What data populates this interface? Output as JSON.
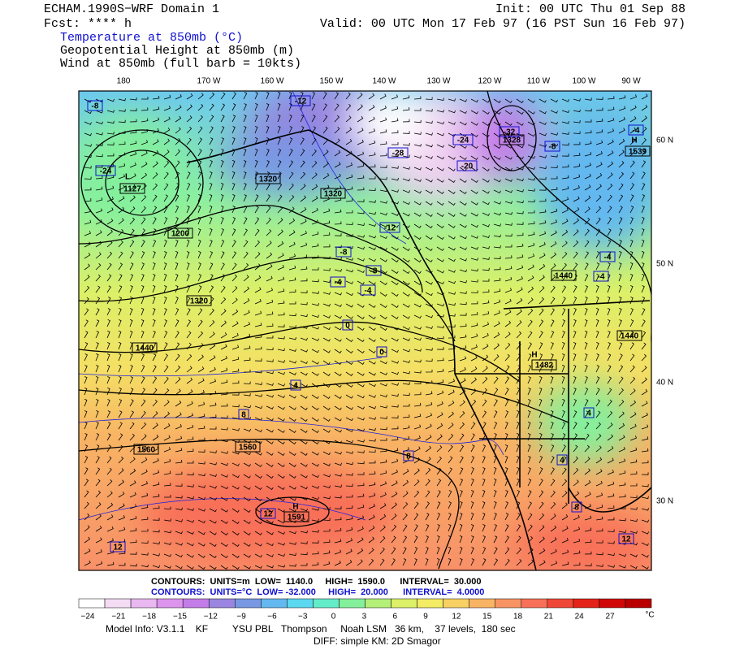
{
  "header": {
    "model": "ECHAM.1990S−WRF Domain 1",
    "forecast": "Fcst: **** h",
    "init": "Init: 00 UTC Thu 01 Sep 88",
    "valid": "Valid: 00 UTC Mon 17 Feb 97 (16 PST Sun 16 Feb 97)"
  },
  "fields": [
    "Temperature at 850mb (°C)",
    "Geopotential Height at 850mb (m)",
    "Wind at 850mb (full barb = 10kts)"
  ],
  "map": {
    "lon_labels": [
      "180",
      "170 W",
      "160 W",
      "150 W",
      "140 W",
      "130 W",
      "120 W",
      "110 W",
      "100 W",
      "90 W"
    ],
    "lat_labels": [
      "60 N",
      "50 N",
      "40 N",
      "30 N"
    ],
    "centers": [
      "L",
      "H",
      "H",
      "H"
    ],
    "height_labels": [
      "1127",
      "1200",
      "1320",
      "1320",
      "1320",
      "1440",
      "1560",
      "1560",
      "1591",
      "1328",
      "1440",
      "1482",
      "1440",
      "1539"
    ],
    "temp_labels": [
      "-8",
      "-12",
      "-24",
      "-28",
      "-24",
      "-20",
      "-32",
      "-4",
      "-8",
      "-12",
      "-8",
      "-8",
      "-4",
      "-4",
      "0",
      "0",
      "4",
      "8",
      "8",
      "4",
      "4",
      "8",
      "12",
      "12",
      "12",
      "-4",
      "-4"
    ]
  },
  "footer": {
    "contours_height": "CONTOURS:  UNITS=m  LOW=  1140.0     HIGH=  1590.0      INTERVAL=  30.000",
    "contours_temp": "CONTOURS:  UNITS=°C  LOW= -32.000     HIGH=  20.000      INTERVAL=  4.0000",
    "colorbar_labels": [
      "−24",
      "−21",
      "−18",
      "−15",
      "−12",
      "−9",
      "−6",
      "−3",
      "0",
      "3",
      "6",
      "9",
      "12",
      "15",
      "18",
      "21",
      "24",
      "27"
    ],
    "colorbar_unit": "°C",
    "colorbar_colors": [
      "#ffffff",
      "#f4dcf4",
      "#eab8f0",
      "#dc94ec",
      "#c47ce8",
      "#9a86e0",
      "#7898e4",
      "#64b8f0",
      "#5cd8f0",
      "#64ecc8",
      "#84f09c",
      "#b4f078",
      "#dcf068",
      "#f4ec64",
      "#f8d064",
      "#f8b464",
      "#f89464",
      "#f87058",
      "#f04838",
      "#e42418",
      "#d00808",
      "#b80000"
    ],
    "model_info": "Model Info: V3.1.1    KF         YSU PBL   Thompson     Noah LSM   36 km,    37 levels,  180 sec",
    "diff": "DIFF: simple KM: 2D Smagor"
  }
}
